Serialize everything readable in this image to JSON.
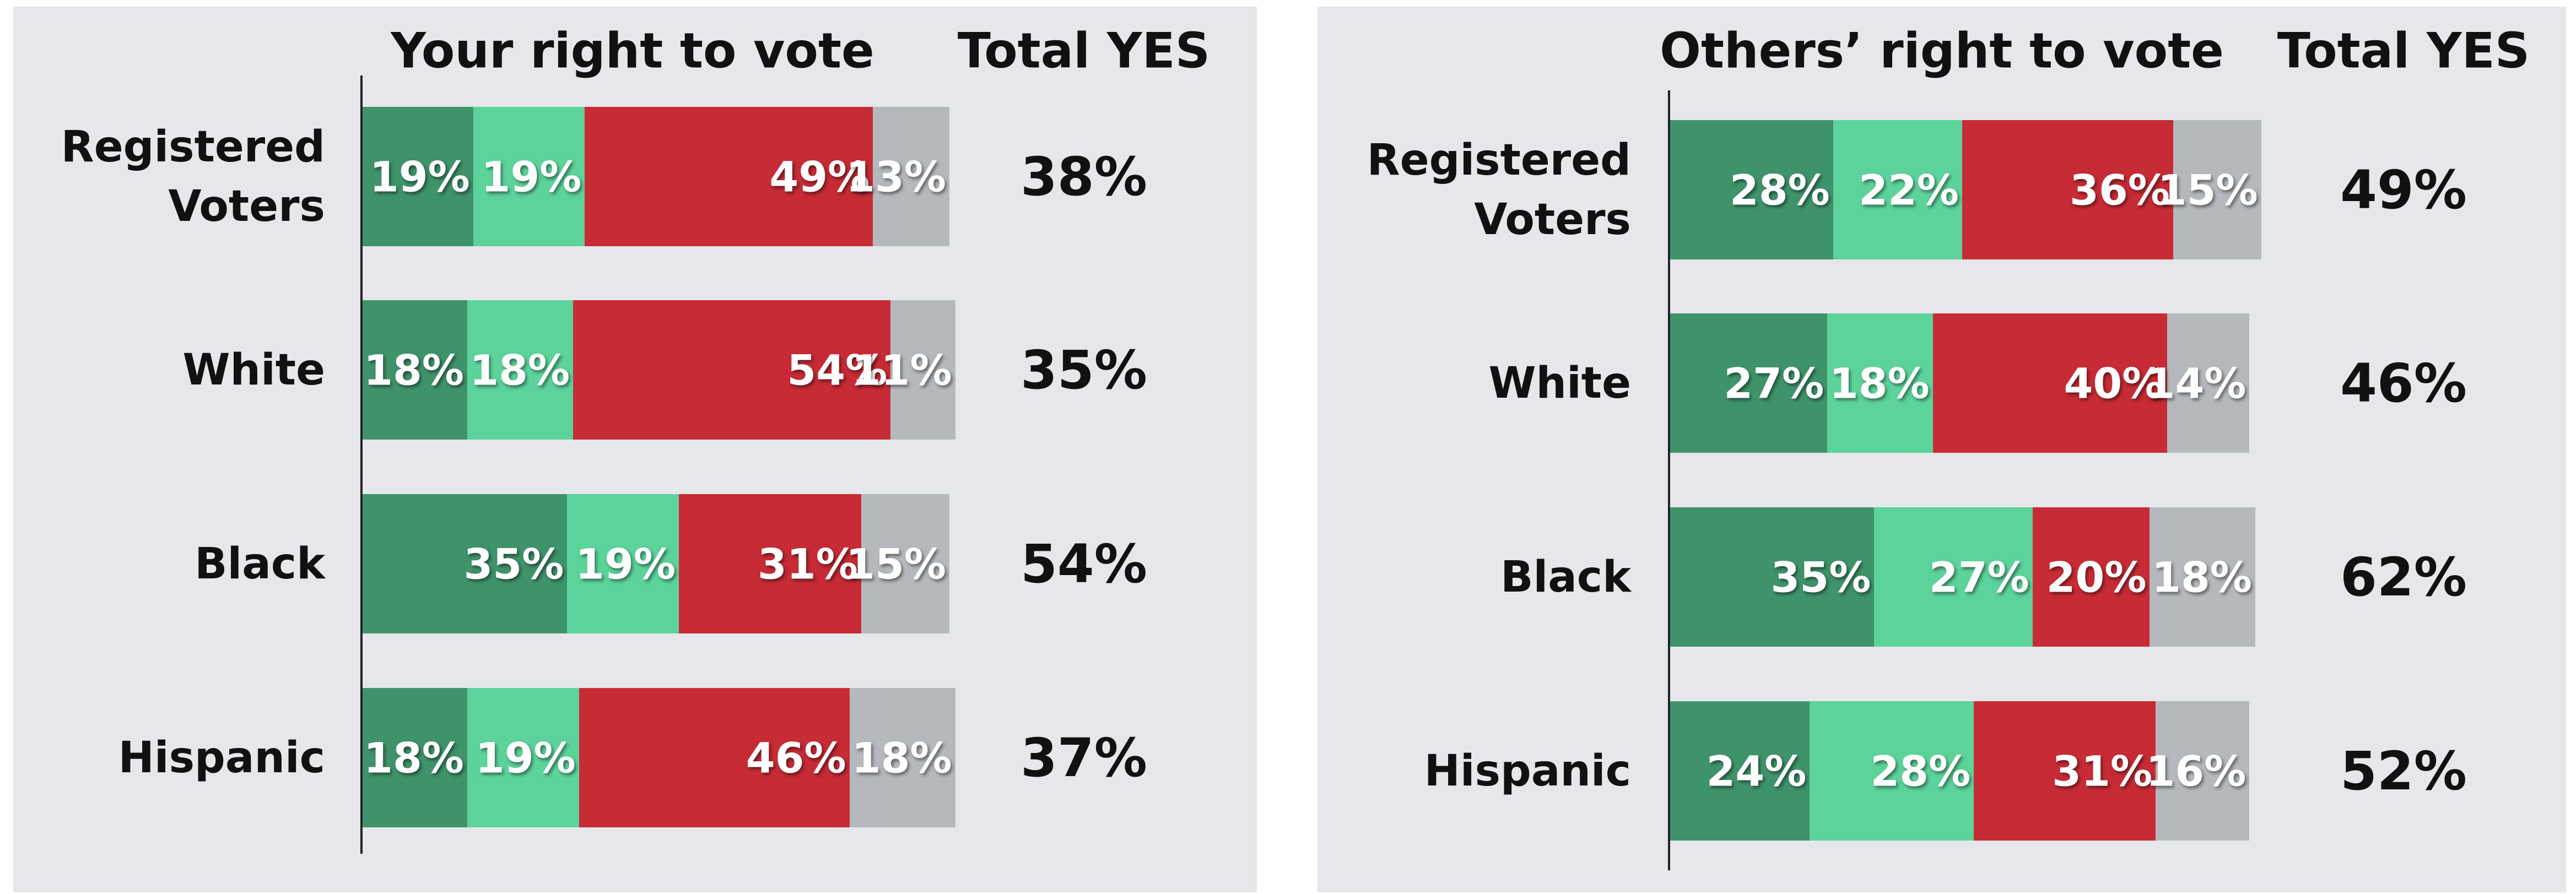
{
  "chart_data": [
    {
      "type": "bar",
      "orientation": "horizontal",
      "stacked": true,
      "title": "Your right to vote",
      "categories": [
        "Registered Voters",
        "White",
        "Black",
        "Hispanic"
      ],
      "xlim": [
        0,
        100
      ],
      "series": [
        {
          "color": "#3f936b",
          "values": [
            19,
            18,
            35,
            18
          ],
          "value_labels": [
            "19%",
            "18%",
            "35%",
            "18%"
          ]
        },
        {
          "color": "#5cd39b",
          "values": [
            19,
            18,
            19,
            19
          ],
          "value_labels": [
            "19%",
            "18%",
            "19%",
            "19%"
          ]
        },
        {
          "color": "#c72b35",
          "values": [
            49,
            54,
            31,
            46
          ],
          "value_labels": [
            "49%",
            "54%",
            "31%",
            "46%"
          ]
        },
        {
          "color": "#b5b9bd",
          "values": [
            13,
            11,
            15,
            18
          ],
          "value_labels": [
            "13%",
            "11%",
            "15%",
            "18%"
          ]
        }
      ],
      "totals": {
        "label": "Total YES",
        "values": [
          38,
          35,
          54,
          37
        ],
        "value_labels": [
          "38%",
          "35%",
          "54%",
          "37%"
        ]
      }
    },
    {
      "type": "bar",
      "orientation": "horizontal",
      "stacked": true,
      "title": "Others’ right to vote",
      "categories": [
        "Registered Voters",
        "White",
        "Black",
        "Hispanic"
      ],
      "xlim": [
        0,
        100
      ],
      "series": [
        {
          "color": "#3f936b",
          "values": [
            28,
            27,
            35,
            24
          ],
          "value_labels": [
            "28%",
            "27%",
            "35%",
            "24%"
          ]
        },
        {
          "color": "#5cd39b",
          "values": [
            22,
            18,
            27,
            28
          ],
          "value_labels": [
            "22%",
            "18%",
            "27%",
            "28%"
          ]
        },
        {
          "color": "#c72b35",
          "values": [
            36,
            40,
            20,
            31
          ],
          "value_labels": [
            "36%",
            "40%",
            "20%",
            "31%"
          ]
        },
        {
          "color": "#b5b9bd",
          "values": [
            15,
            14,
            18,
            16
          ],
          "value_labels": [
            "15%",
            "14%",
            "18%",
            "16%"
          ]
        }
      ],
      "totals": {
        "label": "Total YES",
        "values": [
          49,
          46,
          62,
          52
        ],
        "value_labels": [
          "49%",
          "46%",
          "62%",
          "52%"
        ]
      }
    }
  ]
}
